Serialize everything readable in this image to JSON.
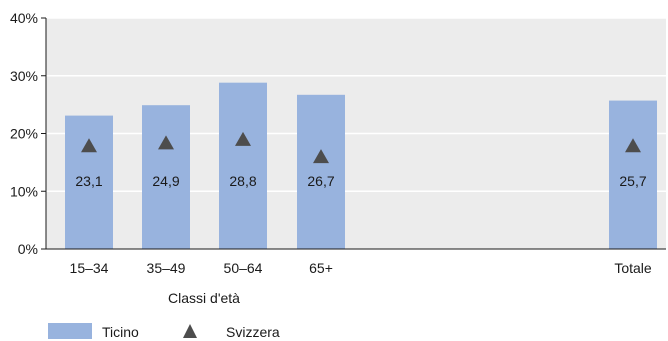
{
  "chart_data": {
    "type": "bar",
    "categories": [
      "15–34",
      "35–49",
      "50–64",
      "65+",
      "Totale"
    ],
    "series": [
      {
        "name": "Ticino",
        "type": "bar",
        "values": [
          23.1,
          24.9,
          28.8,
          26.7,
          25.7
        ]
      },
      {
        "name": "Svizzera",
        "type": "scatter",
        "marker": "triangle",
        "values": [
          17.8,
          18.3,
          18.9,
          15.9,
          17.8
        ]
      }
    ],
    "data_labels": [
      "23,1",
      "24,9",
      "28,8",
      "26,7",
      "25,7"
    ],
    "xlabel": "Classi d'età",
    "ylabel": "",
    "ylim": [
      0,
      40
    ],
    "yticks": [
      "0%",
      "10%",
      "20%",
      "30%",
      "40%"
    ],
    "grid": true,
    "plot_background": "#ececec",
    "legend_position": "bottom-left",
    "colors": {
      "bar": "#98b3de",
      "marker": "#4d4d4d",
      "grid": "#ffffff",
      "axis": "#1a1a1a"
    }
  }
}
